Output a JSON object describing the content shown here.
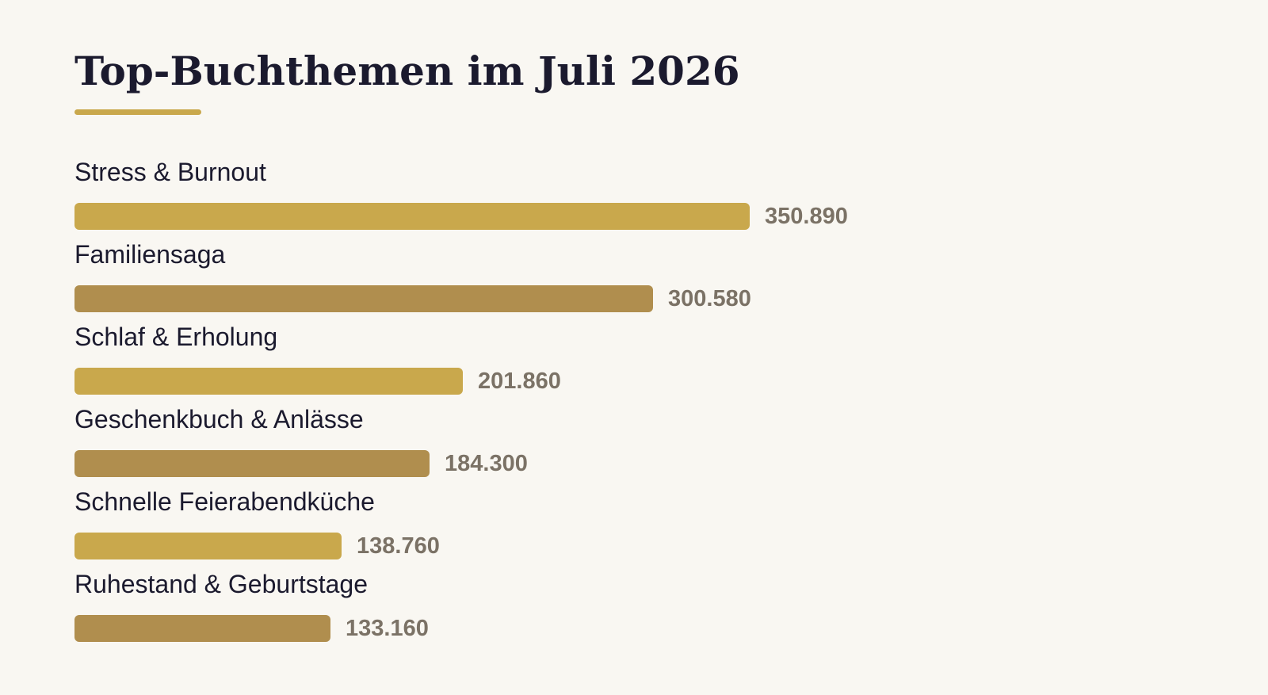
{
  "chart_data": {
    "type": "bar",
    "orientation": "horizontal",
    "title": "Top-Buchthemen im Juli 2026",
    "categories": [
      "Stress & Burnout",
      "Familiensaga",
      "Schlaf & Erholung",
      "Geschenkbuch & Anlässe",
      "Schnelle Feierabendküche",
      "Ruhestand & Geburtstage"
    ],
    "values": [
      350890,
      300580,
      201860,
      184300,
      138760,
      133160
    ],
    "value_labels": [
      "350.890",
      "300.580",
      "201.860",
      "184.300",
      "138.760",
      "133.160"
    ],
    "xlabel": "",
    "ylabel": "",
    "grid": false,
    "legend": "none"
  },
  "colors": {
    "background": "#f9f7f2",
    "title": "#1b1a2e",
    "accent_rule": "#c9a84c",
    "bar_primary": "#c9a84c",
    "bar_secondary": "#b08e4e",
    "category_text": "#1b1a2e",
    "value_text": "#7b7266"
  }
}
